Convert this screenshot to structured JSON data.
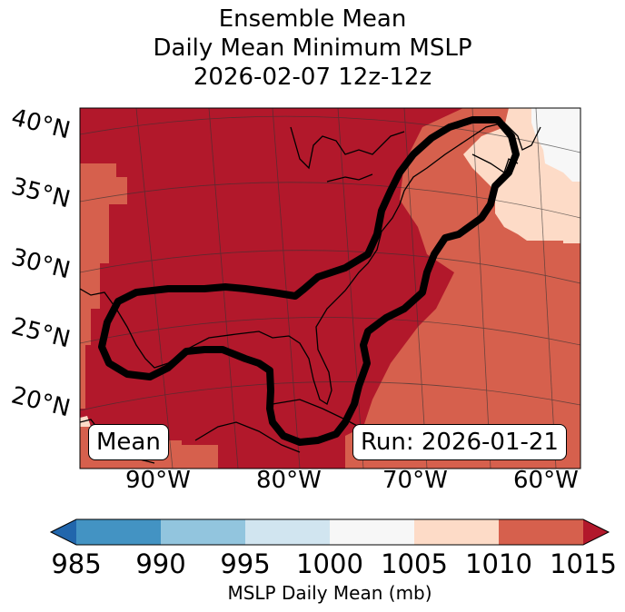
{
  "title": {
    "line1": "Ensemble Mean",
    "line2": "Daily Mean Minimum MSLP",
    "line3": "2026-02-07 12z-12z"
  },
  "axes": {
    "lat_labels": [
      "40°N",
      "35°N",
      "30°N",
      "25°N",
      "20°N"
    ],
    "lon_labels": [
      "90°W",
      "80°W",
      "70°W",
      "60°W"
    ]
  },
  "boxes": {
    "left": "Mean",
    "right": "Run: 2026-01-21"
  },
  "colorbar": {
    "ticks": [
      "985",
      "990",
      "995",
      "1000",
      "1005",
      "1010",
      "1015"
    ],
    "label": "MSLP Daily Mean (mb)",
    "colors": {
      "under": "#2166ac",
      "b985_990": "#4393c3",
      "b990_995": "#92c5de",
      "b995_1000": "#d1e5f0",
      "b1000_1005": "#f7f7f7",
      "b1005_1010": "#fddbc7",
      "b1010_1015": "#d6604d",
      "over": "#b2182b"
    }
  },
  "chart_data": {
    "type": "heatmap",
    "title": "Ensemble Mean Daily Mean Minimum MSLP 2026-02-07 12z-12z",
    "variable": "MSLP Daily Mean (mb)",
    "levels": [
      985,
      990,
      995,
      1000,
      1005,
      1010,
      1015
    ],
    "run": "2026-01-21",
    "extent_lon": [
      -97,
      -57
    ],
    "extent_lat": [
      17,
      42
    ],
    "dominant_value_range": [
      1015,
      1020
    ],
    "contour": "ensemble mean outline enclosing Gulf of Mexico, Florida and US East Coast"
  }
}
